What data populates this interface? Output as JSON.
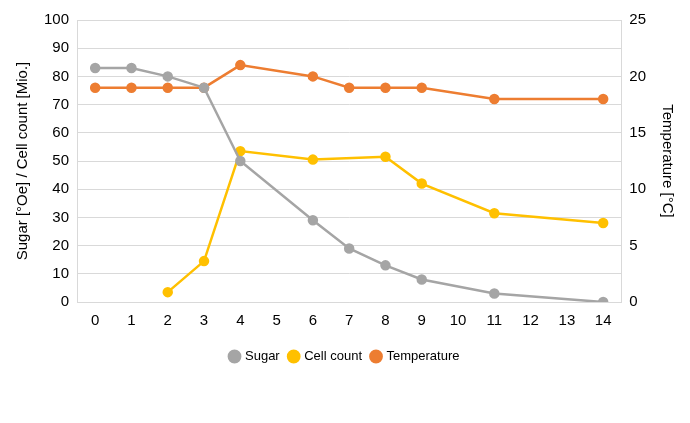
{
  "chart_data": {
    "type": "line",
    "x": [
      0,
      1,
      2,
      3,
      4,
      6,
      7,
      8,
      9,
      11,
      14
    ],
    "xlim": [
      -0.5,
      14.5
    ],
    "xticks": [
      0,
      1,
      2,
      3,
      4,
      5,
      6,
      7,
      8,
      9,
      10,
      11,
      12,
      13,
      14
    ],
    "y_label": "Sugar [°Oe] / Cell count [Mio.]",
    "y2_label": "Temperature [°C]",
    "ylim": [
      0,
      100
    ],
    "yticks": [
      0,
      10,
      20,
      30,
      40,
      50,
      60,
      70,
      80,
      90,
      100
    ],
    "y2lim": [
      0,
      25
    ],
    "y2ticks": [
      0,
      5,
      10,
      15,
      20,
      25
    ],
    "grid": true,
    "legend": "bottom",
    "series": [
      {
        "name": "Sugar",
        "color": "#a5a5a5",
        "marker": "circle",
        "values": [
          83,
          83,
          80,
          76,
          50,
          29,
          19,
          13,
          8,
          3,
          0
        ]
      },
      {
        "name": "Cell count",
        "color": "#ffc000",
        "marker": "circle",
        "values": [
          null,
          null,
          3.5,
          14.5,
          53.5,
          50.5,
          null,
          51.5,
          42,
          31.5,
          28
        ]
      },
      {
        "name": "Temperature",
        "color": "#ed7d31",
        "marker": "circle",
        "axis": "y2",
        "values": [
          19,
          19,
          19,
          19,
          21,
          20,
          19,
          19,
          19,
          18,
          18
        ]
      }
    ]
  }
}
